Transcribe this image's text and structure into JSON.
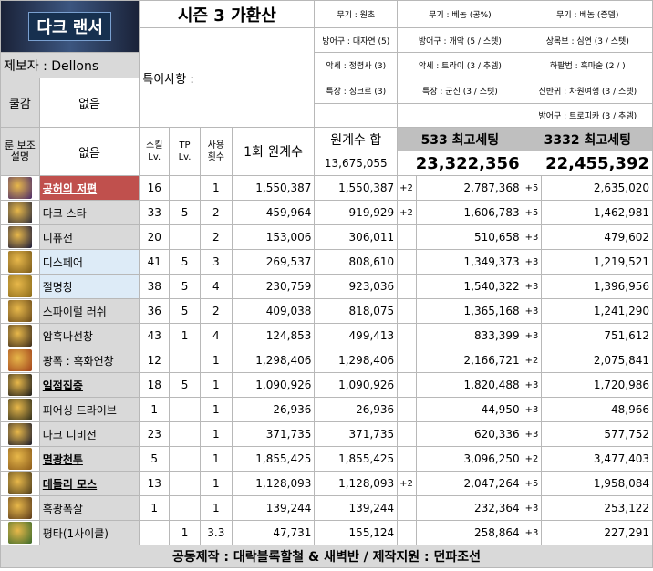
{
  "header": {
    "logo_text": "다크 랜서",
    "title": "시즌 3 가환산",
    "reporter": "제보자 : Dellons",
    "special_notes_label": "특이사항 :",
    "cooldown_label": "쿨감",
    "cooldown_value": "없음",
    "rune_label": "룬 보조 설명",
    "rune_value": "없음"
  },
  "equip_col1": [
    "무기 : 원초",
    "방어구 : 대자연 (5)",
    "악세 : 정령사 (3)",
    "특장 : 싱크로 (3)"
  ],
  "equip_col2": [
    "무기 : 베놈 (공%)",
    "방어구 : 개악 (5 / 스텟)",
    "악세 : 트라이 (3 / 추뎀)",
    "특장 : 군신 (3 / 스텟)"
  ],
  "equip_col3": [
    "무기 : 베놈 (증뎀)",
    "상목보 : 심연 (3 / 스텟)",
    "하팔법 : 흑마술 (2 / )",
    "신반귀 : 차원여행 (3 / 스텟)",
    "방어구 : 트로피카 (3 / 추뎀)"
  ],
  "table_headers": {
    "skill_lv": "스킬 Lv.",
    "tp_lv": "TP Lv.",
    "uses": "사용 횟수",
    "base_once": "1회 원계수",
    "base_sum": "원계수 합",
    "base_sum_total": "13,675,055",
    "setting1": "533 최고세팅",
    "setting1_total": "23,322,356",
    "setting2": "3332 최고세팅",
    "setting2_total": "22,455,392"
  },
  "skills": [
    {
      "name": "공허의 저편",
      "icon": "void-icon",
      "color": "#4a2a6a",
      "style": "red",
      "lv": "16",
      "tp": "",
      "uses": "1",
      "once": "1,550,387",
      "sum": "1,550,387",
      "p1": "+2",
      "v1": "2,787,368",
      "p2": "+5",
      "v2": "2,635,020"
    },
    {
      "name": "다크 스타",
      "icon": "dark-star-icon",
      "color": "#2a2a3a",
      "style": "gray",
      "lv": "33",
      "tp": "5",
      "uses": "2",
      "once": "459,964",
      "sum": "919,929",
      "p1": "+2",
      "v1": "1,606,783",
      "p2": "+5",
      "v2": "1,462,981"
    },
    {
      "name": "디퓨전",
      "icon": "diffusion-icon",
      "color": "#1a1a3a",
      "style": "gray",
      "lv": "20",
      "tp": "",
      "uses": "2",
      "once": "153,006",
      "sum": "306,011",
      "p1": "",
      "v1": "510,658",
      "p2": "+3",
      "v2": "479,602"
    },
    {
      "name": "디스페어",
      "icon": "despair-icon",
      "color": "#7a5a1a",
      "style": "lblue",
      "lv": "41",
      "tp": "5",
      "uses": "3",
      "once": "269,537",
      "sum": "808,610",
      "p1": "",
      "v1": "1,349,373",
      "p2": "+3",
      "v2": "1,219,521"
    },
    {
      "name": "절명창",
      "icon": "spear-icon",
      "color": "#8a6a1a",
      "style": "lblue",
      "lv": "38",
      "tp": "5",
      "uses": "4",
      "once": "230,759",
      "sum": "923,036",
      "p1": "",
      "v1": "1,540,322",
      "p2": "+3",
      "v2": "1,396,956"
    },
    {
      "name": "스파이럴 러쉬",
      "icon": "spiral-rush-icon",
      "color": "#6a4a1a",
      "style": "gray",
      "lv": "36",
      "tp": "5",
      "uses": "2",
      "once": "409,038",
      "sum": "818,075",
      "p1": "",
      "v1": "1,365,168",
      "p2": "+3",
      "v2": "1,241,290"
    },
    {
      "name": "암흑나선창",
      "icon": "dark-spiral-icon",
      "color": "#3a2a1a",
      "style": "gray",
      "lv": "43",
      "tp": "1",
      "uses": "4",
      "once": "124,853",
      "sum": "499,413",
      "p1": "",
      "v1": "833,399",
      "p2": "+3",
      "v2": "751,612"
    },
    {
      "name": "광폭 : 흑화연창",
      "icon": "rampage-icon",
      "color": "#a0401a",
      "style": "gray",
      "lv": "12",
      "tp": "",
      "uses": "1",
      "once": "1,298,406",
      "sum": "1,298,406",
      "p1": "",
      "v1": "2,166,721",
      "p2": "+2",
      "v2": "2,075,841"
    },
    {
      "name": "일점집중",
      "icon": "focus-icon",
      "color": "#1a1a1a",
      "style": "boldu",
      "lv": "18",
      "tp": "5",
      "uses": "1",
      "once": "1,090,926",
      "sum": "1,090,926",
      "p1": "",
      "v1": "1,820,488",
      "p2": "+3",
      "v2": "1,720,986"
    },
    {
      "name": "피어싱 드라이브",
      "icon": "piercing-drive-icon",
      "color": "#2a2a1a",
      "style": "gray",
      "lv": "1",
      "tp": "",
      "uses": "1",
      "once": "26,936",
      "sum": "26,936",
      "p1": "",
      "v1": "44,950",
      "p2": "+3",
      "v2": "48,966"
    },
    {
      "name": "다크 디비전",
      "icon": "dark-division-icon",
      "color": "#1a1a2a",
      "style": "gray",
      "lv": "23",
      "tp": "",
      "uses": "1",
      "once": "371,735",
      "sum": "371,735",
      "p1": "",
      "v1": "620,336",
      "p2": "+3",
      "v2": "577,752"
    },
    {
      "name": "멸광천투",
      "icon": "annihilation-icon",
      "color": "#8a5a1a",
      "style": "boldu",
      "lv": "5",
      "tp": "",
      "uses": "1",
      "once": "1,855,425",
      "sum": "1,855,425",
      "p1": "",
      "v1": "3,096,250",
      "p2": "+2",
      "v2": "3,477,403"
    },
    {
      "name": "데들리 모스",
      "icon": "deadly-moth-icon",
      "color": "#4a3a1a",
      "style": "boldu",
      "lv": "13",
      "tp": "",
      "uses": "1",
      "once": "1,128,093",
      "sum": "1,128,093",
      "p1": "+2",
      "v1": "2,047,264",
      "p2": "+5",
      "v2": "1,958,084"
    },
    {
      "name": "흑광폭살",
      "icon": "dark-burst-icon",
      "color": "#5a3a1a",
      "style": "gray",
      "lv": "1",
      "tp": "",
      "uses": "1",
      "once": "139,244",
      "sum": "139,244",
      "p1": "",
      "v1": "232,364",
      "p2": "+3",
      "v2": "253,122"
    },
    {
      "name": "평타(1사이클)",
      "icon": "basic-attack-icon",
      "color": "#3a6a2a",
      "style": "gray",
      "lv": "",
      "tp": "1",
      "uses": "3.3",
      "once": "47,731",
      "sum": "155,124",
      "p1": "",
      "v1": "258,864",
      "p2": "+3",
      "v2": "227,291"
    }
  ],
  "footer": "공동제작 : 대락블록할철 & 새벽반 / 제작지원 : 던파조선"
}
